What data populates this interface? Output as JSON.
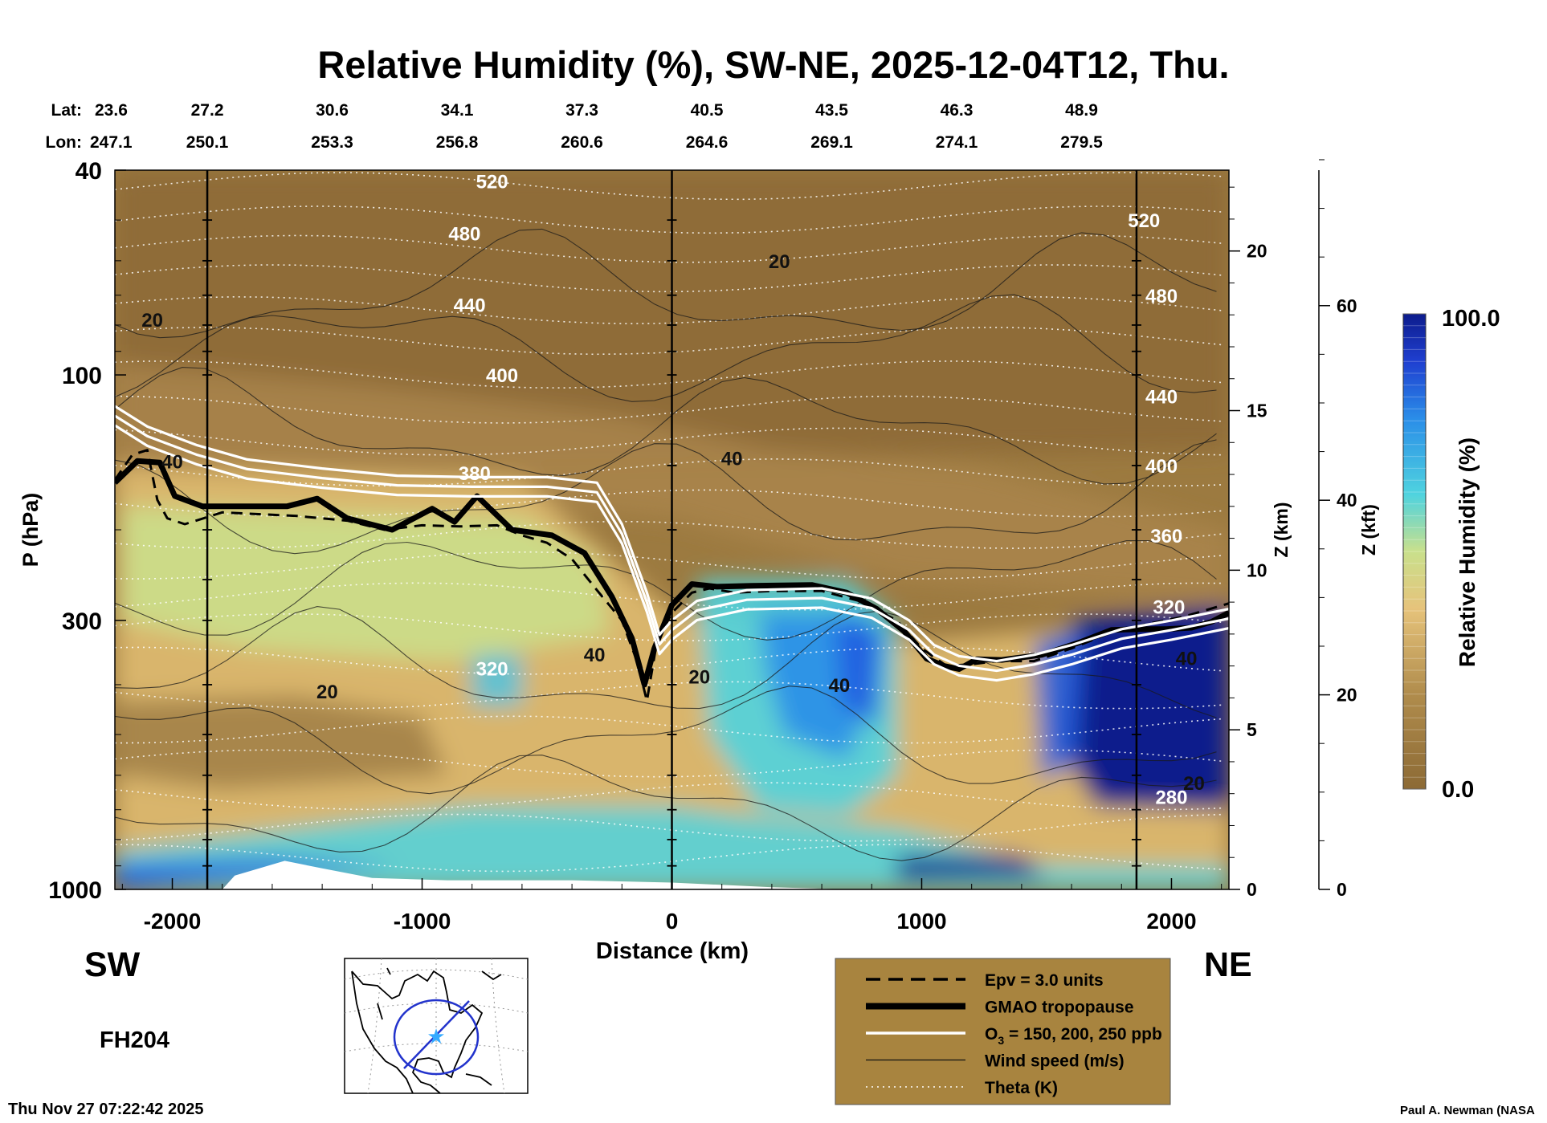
{
  "chart_data": {
    "type": "heatmap",
    "title": "Relative Humidity (%), SW-NE, 2025-12-04T12, Thu.",
    "xlabel": "Distance (km)",
    "ylabel": "P (hPa)",
    "z_km_label": "Z (km)",
    "z_kft_label": "Z (kft)",
    "colorbar_label": "Relative Humidity (%)",
    "colorbar_max_label": "100.0",
    "colorbar_min_label": "0.0",
    "colorbar_range": [
      0,
      100
    ],
    "xlim": [
      -2230,
      2230
    ],
    "ylim_hpa": [
      1000,
      40
    ],
    "log_pressure_axis": true,
    "x_ticks": [
      -2000,
      -1000,
      0,
      1000,
      2000
    ],
    "y_ticks_hpa": [
      40,
      100,
      300,
      1000
    ],
    "z_km_ticks": [
      0,
      5,
      10,
      15,
      20
    ],
    "z_kft_ticks": [
      0,
      20,
      40,
      60
    ],
    "lat_label": "Lat:",
    "lon_label": "Lon:",
    "lat_values": [
      "23.6",
      "27.2",
      "30.6",
      "34.1",
      "37.3",
      "40.5",
      "43.5",
      "46.3",
      "48.9"
    ],
    "lon_values": [
      "247.1",
      "250.1",
      "253.3",
      "256.8",
      "260.6",
      "264.6",
      "269.1",
      "274.1",
      "279.5"
    ],
    "latlon_x_km": [
      -2230,
      -1860,
      -1360,
      -860,
      -360,
      140,
      640,
      1140,
      1640
    ],
    "vertical_lines_km": [
      -1860,
      0,
      1860
    ],
    "left_end_label": "SW",
    "right_end_label": "NE",
    "forecast_hour": "FH204",
    "timestamp": "Thu Nov 27 07:22:42 2025",
    "credit": "Paul A. Newman (NASA",
    "theta_labels": [
      {
        "text": "520",
        "x": -720,
        "p": 42
      },
      {
        "text": "480",
        "x": -830,
        "p": 53
      },
      {
        "text": "440",
        "x": -810,
        "p": 73
      },
      {
        "text": "400",
        "x": -680,
        "p": 100
      },
      {
        "text": "380",
        "x": -790,
        "p": 155
      },
      {
        "text": "320",
        "x": -720,
        "p": 372
      },
      {
        "text": "520",
        "x": 1890,
        "p": 50
      },
      {
        "text": "480",
        "x": 1960,
        "p": 70
      },
      {
        "text": "440",
        "x": 1960,
        "p": 110
      },
      {
        "text": "400",
        "x": 1960,
        "p": 150
      },
      {
        "text": "360",
        "x": 1980,
        "p": 205
      },
      {
        "text": "320",
        "x": 1990,
        "p": 282
      },
      {
        "text": "280",
        "x": 2000,
        "p": 660
      }
    ],
    "wind_labels": [
      {
        "text": "20",
        "x": -2080,
        "p": 78
      },
      {
        "text": "40",
        "x": -2000,
        "p": 147
      },
      {
        "text": "20",
        "x": 430,
        "p": 60
      },
      {
        "text": "40",
        "x": 240,
        "p": 145
      },
      {
        "text": "40",
        "x": -310,
        "p": 349
      },
      {
        "text": "20",
        "x": -1380,
        "p": 412
      },
      {
        "text": "20",
        "x": 110,
        "p": 385
      },
      {
        "text": "40",
        "x": 670,
        "p": 400
      },
      {
        "text": "40",
        "x": 2060,
        "p": 355
      },
      {
        "text": "20",
        "x": 2090,
        "p": 620
      }
    ],
    "series": [
      {
        "name": "GMAO tropopause",
        "x": [
          -2230,
          -2140,
          -2050,
          -1990,
          -1880,
          -1700,
          -1540,
          -1420,
          -1300,
          -1120,
          -960,
          -870,
          -780,
          -640,
          -480,
          -350,
          -240,
          -160,
          -110,
          -70,
          0,
          80,
          180,
          320,
          560,
          700,
          820,
          930,
          1020,
          1090,
          1150,
          1220,
          1320,
          1480,
          1640,
          1760,
          1880,
          1980,
          2080,
          2160,
          2230
        ],
        "p_hpa": [
          162,
          147,
          148,
          172,
          180,
          180,
          180,
          174,
          190,
          200,
          182,
          193,
          172,
          200,
          205,
          222,
          270,
          325,
          400,
          340,
          280,
          255,
          258,
          257,
          256,
          265,
          285,
          315,
          356,
          368,
          373,
          357,
          358,
          350,
          330,
          313,
          312,
          312,
          310,
          302,
          290
        ]
      },
      {
        "name": "Epv = 3.0 units",
        "x": [
          -2230,
          -2160,
          -2100,
          -2060,
          -2020,
          -1950,
          -1800,
          -1500,
          -1300,
          -1150,
          -1000,
          -850,
          -700,
          -600,
          -500,
          -400,
          -300,
          -200,
          -140,
          -100,
          -60,
          0,
          80,
          150,
          250,
          400,
          600,
          750,
          900,
          1000,
          1100,
          1200,
          1300,
          1450,
          1600,
          1750,
          1900,
          2050,
          2230
        ],
        "p_hpa": [
          160,
          143,
          140,
          175,
          190,
          195,
          185,
          188,
          192,
          200,
          196,
          197,
          196,
          205,
          212,
          228,
          262,
          300,
          360,
          430,
          330,
          290,
          265,
          260,
          265,
          263,
          263,
          275,
          300,
          340,
          368,
          365,
          360,
          360,
          340,
          318,
          305,
          295,
          278
        ]
      },
      {
        "name": "O3 = 150, 200, 250 ppb",
        "x": [
          -2230,
          -2100,
          -1900,
          -1700,
          -1400,
          -1100,
          -800,
          -500,
          -300,
          -200,
          -100,
          -50,
          0,
          100,
          300,
          600,
          800,
          950,
          1050,
          1150,
          1300,
          1450,
          1600,
          1800,
          2000,
          2230
        ],
        "p_hpa": [
          115,
          126,
          137,
          146,
          152,
          157,
          158,
          158,
          162,
          195,
          265,
          320,
          300,
          275,
          262,
          260,
          272,
          300,
          335,
          352,
          360,
          350,
          335,
          312,
          300,
          285
        ]
      }
    ],
    "legend": [
      {
        "label": "Epv = 3.0 units",
        "style": "dashed"
      },
      {
        "label": "GMAO tropopause",
        "style": "thick"
      },
      {
        "label": "O3 = 150, 200, 250 ppb",
        "label_main": "O",
        "label_sub": "3",
        "label_rest": " = 150, 200, 250 ppb",
        "style": "white"
      },
      {
        "label": "Wind speed (m/s)",
        "style": "thin"
      },
      {
        "label": "Theta (K)",
        "style": "dotted"
      }
    ],
    "legend_placement": "bottom-center",
    "colors": {
      "dry": "#8c6a35",
      "mid": "#e6c37b",
      "moist_low": "#c9e08c",
      "moist": "#4fd3df",
      "wet": "#1f5ce0",
      "saturated": "#0d1c8c",
      "legend_bg": "#a8843f",
      "map_circle": "#2233cc",
      "map_star": "#33aaff"
    }
  }
}
